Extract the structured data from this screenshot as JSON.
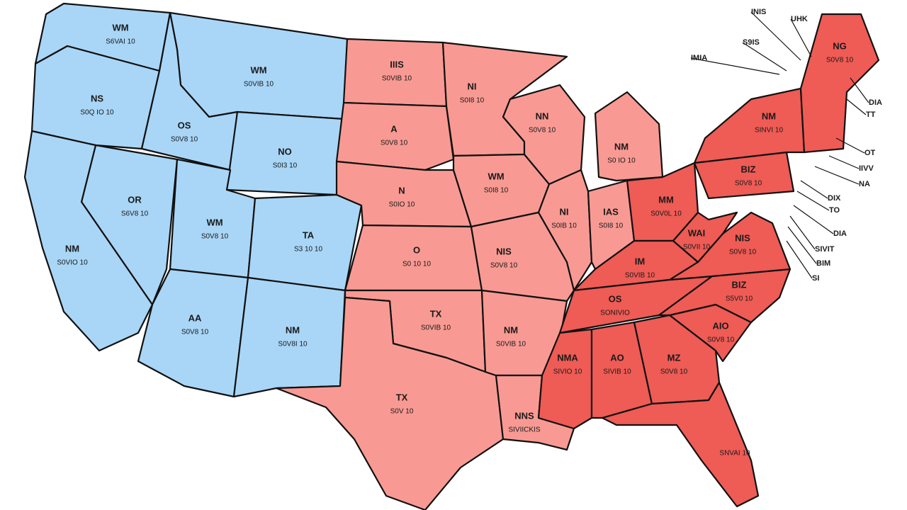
{
  "states": [
    {
      "abbr": "WM",
      "value": "S6VAI 10"
    },
    {
      "abbr": "WM",
      "value": "S0VIB 10"
    },
    {
      "abbr": "NS",
      "value": "S0Q IO 10"
    },
    {
      "abbr": "OS",
      "value": "S0V8 10"
    },
    {
      "abbr": "NO",
      "value": "S0I3 10"
    },
    {
      "abbr": "OR",
      "value": "S6V8 10"
    },
    {
      "abbr": "WM",
      "value": "S0V8 10"
    },
    {
      "abbr": "TA",
      "value": "S3 10 10"
    },
    {
      "abbr": "NM",
      "value": "S0VIO 10"
    },
    {
      "abbr": "AA",
      "value": "S0V8 10"
    },
    {
      "abbr": "NM",
      "value": "S0V8I 10"
    },
    {
      "abbr": "IIIS",
      "value": "S0VIB 10"
    },
    {
      "abbr": "A",
      "value": "S0V8 10"
    },
    {
      "abbr": "N",
      "value": "S0IO 10"
    },
    {
      "abbr": "O",
      "value": "S0 10 10"
    },
    {
      "abbr": "TX",
      "value": "S0VIB 10"
    },
    {
      "abbr": "TX",
      "value": "S0V 10"
    },
    {
      "abbr": "NI",
      "value": "S0I8 10"
    },
    {
      "abbr": "WM",
      "value": "S0I8 10"
    },
    {
      "abbr": "NIS",
      "value": "S0V8 10"
    },
    {
      "abbr": "NM",
      "value": "S0VIB 10"
    },
    {
      "abbr": "NNS",
      "value": "SIVIICKIS"
    },
    {
      "abbr": "NN",
      "value": "S0V8 10"
    },
    {
      "abbr": "NI",
      "value": "S0IB 10"
    },
    {
      "abbr": "NM",
      "value": "S0 IO 10"
    },
    {
      "abbr": "IAS",
      "value": "S0I8 10"
    },
    {
      "abbr": "MM",
      "value": "S0V0L 10"
    },
    {
      "abbr": "IM",
      "value": "S0VIB 10"
    },
    {
      "abbr": "OS",
      "value": "SONIVIO"
    },
    {
      "abbr": "NMA",
      "value": "SIVIO 10"
    },
    {
      "abbr": "AO",
      "value": "SIVIB 10"
    },
    {
      "abbr": "MZ",
      "value": "S0V8 10"
    },
    {
      "value": "SNVAI 10"
    },
    {
      "abbr": "AIO",
      "value": "S0V8 10"
    },
    {
      "abbr": "BIZ",
      "value": "S5V0 10"
    },
    {
      "abbr": "NIS",
      "value": "S0V8 10"
    },
    {
      "abbr": "WAI",
      "value": "S0VII 10"
    },
    {
      "abbr": "BIZ",
      "value": "S0V8 10"
    },
    {
      "abbr": "NM",
      "value": "SINVI 10"
    },
    {
      "abbr": "NG",
      "value": "S0V8 10"
    }
  ],
  "callouts": [
    "INIS",
    "UHK",
    "S9IS",
    "IMIA",
    "DIA",
    "TT",
    "OT",
    "IIVV",
    "NA",
    "DIX",
    "TO",
    "DIA",
    "SIVIT",
    "BIM",
    "SI"
  ]
}
